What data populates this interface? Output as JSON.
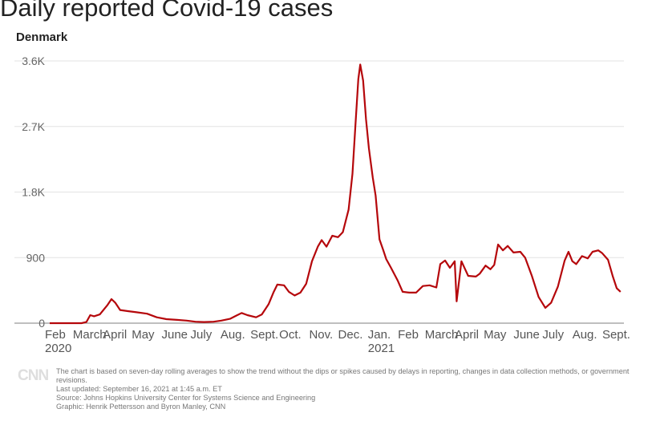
{
  "header": {
    "title": "Daily reported Covid-19 cases",
    "subtitle": "Denmark"
  },
  "chart_data": {
    "type": "area",
    "title": "Daily reported Covid-19 cases",
    "subtitle": "Denmark",
    "xlabel": "",
    "ylabel": "",
    "ylim": [
      0,
      3600
    ],
    "yticks": [
      0,
      900,
      1800,
      2700,
      3600
    ],
    "ytick_labels": [
      "0",
      "900",
      "1.8K",
      "2.7K",
      "3.6K"
    ],
    "xticks": [
      {
        "date": "2020-02-01",
        "label": "Feb",
        "year": "2020"
      },
      {
        "date": "2020-03-01",
        "label": "March"
      },
      {
        "date": "2020-04-01",
        "label": "April"
      },
      {
        "date": "2020-05-01",
        "label": "May"
      },
      {
        "date": "2020-06-01",
        "label": "June"
      },
      {
        "date": "2020-07-01",
        "label": "July"
      },
      {
        "date": "2020-08-01",
        "label": "Aug."
      },
      {
        "date": "2020-09-01",
        "label": "Sept."
      },
      {
        "date": "2020-10-01",
        "label": "Oct."
      },
      {
        "date": "2020-11-01",
        "label": "Nov."
      },
      {
        "date": "2020-12-01",
        "label": "Dec."
      },
      {
        "date": "2021-01-01",
        "label": "Jan.",
        "year": "2021"
      },
      {
        "date": "2021-02-01",
        "label": "Feb"
      },
      {
        "date": "2021-03-01",
        "label": "March"
      },
      {
        "date": "2021-04-01",
        "label": "April"
      },
      {
        "date": "2021-05-01",
        "label": "May"
      },
      {
        "date": "2021-06-01",
        "label": "June"
      },
      {
        "date": "2021-07-01",
        "label": "July"
      },
      {
        "date": "2021-08-01",
        "label": "Aug."
      },
      {
        "date": "2021-09-01",
        "label": "Sept."
      }
    ],
    "grid": true,
    "line_color": "#b5070b",
    "series": [
      {
        "values": [
          [
            "2020-02-01",
            0
          ],
          [
            "2020-03-01",
            0
          ],
          [
            "2020-03-05",
            0
          ],
          [
            "2020-03-10",
            15
          ],
          [
            "2020-03-14",
            110
          ],
          [
            "2020-03-18",
            95
          ],
          [
            "2020-03-24",
            120
          ],
          [
            "2020-04-01",
            250
          ],
          [
            "2020-04-05",
            330
          ],
          [
            "2020-04-09",
            280
          ],
          [
            "2020-04-14",
            180
          ],
          [
            "2020-04-22",
            165
          ],
          [
            "2020-05-01",
            150
          ],
          [
            "2020-05-12",
            130
          ],
          [
            "2020-05-22",
            80
          ],
          [
            "2020-06-01",
            55
          ],
          [
            "2020-06-12",
            45
          ],
          [
            "2020-06-22",
            35
          ],
          [
            "2020-07-01",
            20
          ],
          [
            "2020-07-10",
            15
          ],
          [
            "2020-07-20",
            20
          ],
          [
            "2020-07-28",
            35
          ],
          [
            "2020-08-06",
            60
          ],
          [
            "2020-08-12",
            100
          ],
          [
            "2020-08-18",
            140
          ],
          [
            "2020-08-24",
            110
          ],
          [
            "2020-09-02",
            80
          ],
          [
            "2020-09-08",
            120
          ],
          [
            "2020-09-15",
            260
          ],
          [
            "2020-09-20",
            420
          ],
          [
            "2020-09-24",
            530
          ],
          [
            "2020-10-01",
            520
          ],
          [
            "2020-10-06",
            430
          ],
          [
            "2020-10-12",
            380
          ],
          [
            "2020-10-18",
            420
          ],
          [
            "2020-10-24",
            540
          ],
          [
            "2020-10-30",
            850
          ],
          [
            "2020-11-05",
            1050
          ],
          [
            "2020-11-09",
            1140
          ],
          [
            "2020-11-14",
            1050
          ],
          [
            "2020-11-20",
            1200
          ],
          [
            "2020-11-26",
            1180
          ],
          [
            "2020-12-01",
            1250
          ],
          [
            "2020-12-07",
            1560
          ],
          [
            "2020-12-11",
            2050
          ],
          [
            "2020-12-14",
            2700
          ],
          [
            "2020-12-17",
            3350
          ],
          [
            "2020-12-19",
            3550
          ],
          [
            "2020-12-22",
            3330
          ],
          [
            "2020-12-25",
            2800
          ],
          [
            "2020-12-28",
            2400
          ],
          [
            "2021-01-01",
            2000
          ],
          [
            "2021-01-04",
            1750
          ],
          [
            "2021-01-08",
            1150
          ],
          [
            "2021-01-12",
            1000
          ],
          [
            "2021-01-15",
            880
          ],
          [
            "2021-01-20",
            760
          ],
          [
            "2021-01-27",
            580
          ],
          [
            "2021-02-01",
            430
          ],
          [
            "2021-02-08",
            420
          ],
          [
            "2021-02-15",
            420
          ],
          [
            "2021-02-22",
            510
          ],
          [
            "2021-03-01",
            520
          ],
          [
            "2021-03-08",
            490
          ],
          [
            "2021-03-12",
            810
          ],
          [
            "2021-03-17",
            860
          ],
          [
            "2021-03-22",
            760
          ],
          [
            "2021-03-27",
            850
          ],
          [
            "2021-03-29",
            300
          ],
          [
            "2021-04-03",
            850
          ],
          [
            "2021-04-10",
            650
          ],
          [
            "2021-04-18",
            640
          ],
          [
            "2021-04-22",
            680
          ],
          [
            "2021-04-28",
            790
          ],
          [
            "2021-05-03",
            740
          ],
          [
            "2021-05-07",
            800
          ],
          [
            "2021-05-11",
            1080
          ],
          [
            "2021-05-16",
            1000
          ],
          [
            "2021-05-21",
            1060
          ],
          [
            "2021-05-27",
            970
          ],
          [
            "2021-06-03",
            980
          ],
          [
            "2021-06-08",
            900
          ],
          [
            "2021-06-15",
            650
          ],
          [
            "2021-06-22",
            360
          ],
          [
            "2021-06-29",
            210
          ],
          [
            "2021-07-05",
            280
          ],
          [
            "2021-07-12",
            500
          ],
          [
            "2021-07-19",
            860
          ],
          [
            "2021-07-23",
            980
          ],
          [
            "2021-07-27",
            850
          ],
          [
            "2021-07-31",
            810
          ],
          [
            "2021-08-06",
            920
          ],
          [
            "2021-08-12",
            890
          ],
          [
            "2021-08-17",
            980
          ],
          [
            "2021-08-23",
            1000
          ],
          [
            "2021-08-27",
            960
          ],
          [
            "2021-09-02",
            870
          ],
          [
            "2021-09-07",
            640
          ],
          [
            "2021-09-11",
            480
          ],
          [
            "2021-09-15",
            430
          ]
        ]
      }
    ]
  },
  "footer": {
    "logo": "CNN",
    "note": "The chart is based on seven-day rolling averages to show the trend without the dips or spikes caused by delays in reporting, changes in data collection methods, or government revisions.",
    "updated": "Last updated: September 16, 2021 at 1:45 a.m. ET",
    "source": "Source: Johns Hopkins University Center for Systems Science and Engineering",
    "graphic": "Graphic: Henrik Pettersson and Byron Manley, CNN"
  }
}
